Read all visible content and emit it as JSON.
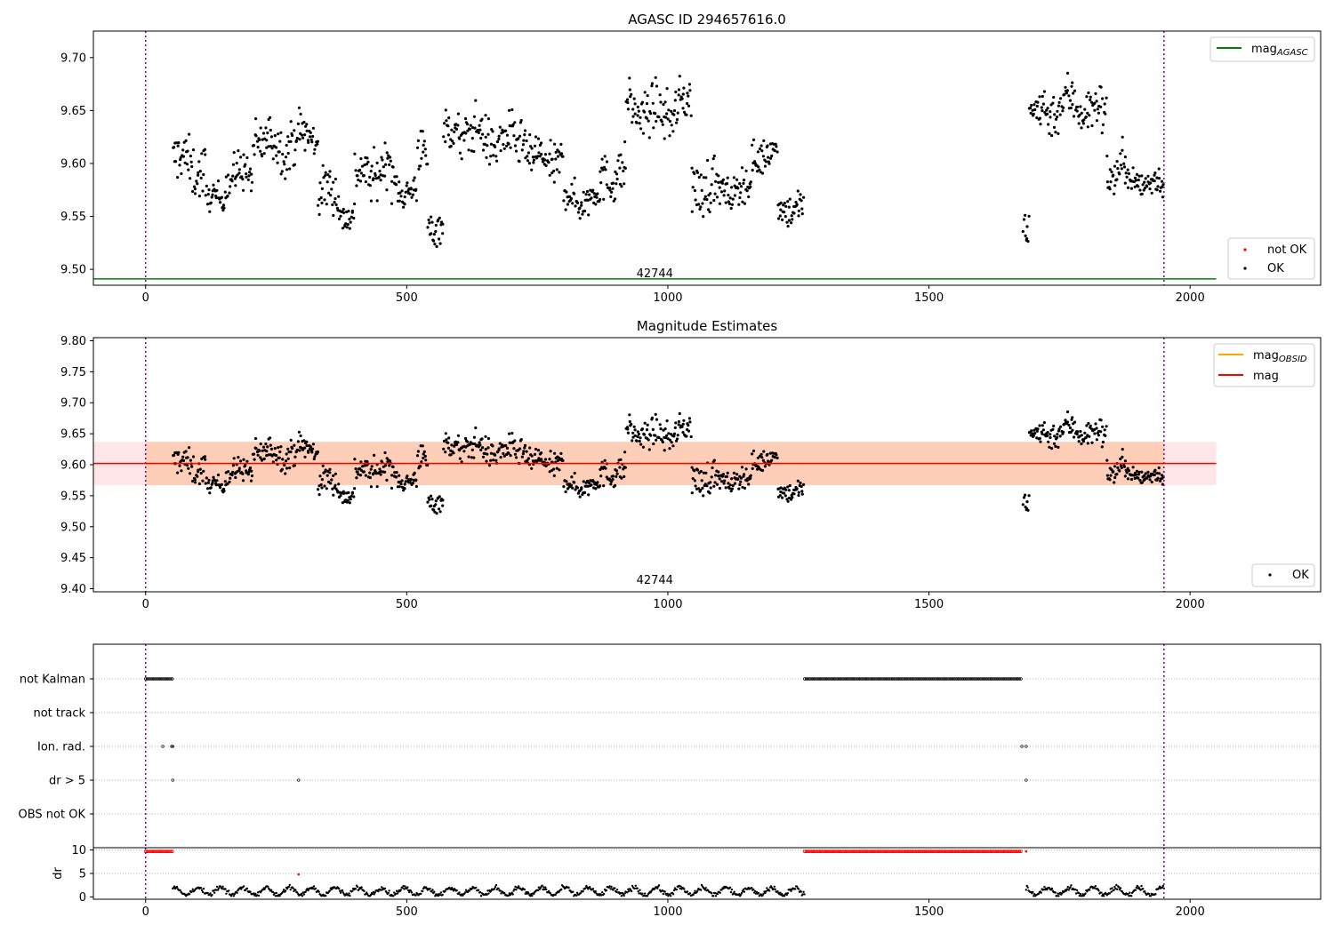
{
  "chart_data": [
    {
      "type": "scatter",
      "title": "AGASC ID 294657616.0",
      "xlim": [
        -100,
        2250
      ],
      "ylim": [
        9.485,
        9.725
      ],
      "xticks": [
        0,
        500,
        1000,
        1500,
        2000
      ],
      "yticks": [
        9.5,
        9.55,
        9.6,
        9.65,
        9.7
      ],
      "ytick_labels": [
        "9.50",
        "9.55",
        "9.60",
        "9.65",
        "9.70"
      ],
      "annotation": "42744",
      "annotation_x": 975,
      "vlines": [
        0,
        1950
      ],
      "mag_agasc": 9.491,
      "mag_line_range": [
        -100,
        2050
      ],
      "legend_lines": [
        {
          "label": "mag",
          "sub": "AGASC",
          "color": "#008000"
        }
      ],
      "legend_points": [
        {
          "label": "not OK",
          "color": "#ff0000"
        },
        {
          "label": "OK",
          "color": "#000000"
        }
      ],
      "segments": [
        {
          "x0": 52,
          "x1": 115,
          "base": 9.601,
          "amp": 0.022
        },
        {
          "x0": 115,
          "x1": 150,
          "base": 9.568,
          "amp": 0.012
        },
        {
          "x0": 150,
          "x1": 205,
          "base": 9.585,
          "amp": 0.018
        },
        {
          "x0": 205,
          "x1": 330,
          "base": 9.622,
          "amp": 0.02
        },
        {
          "x0": 330,
          "x1": 370,
          "base": 9.57,
          "amp": 0.02
        },
        {
          "x0": 370,
          "x1": 400,
          "base": 9.555,
          "amp": 0.013
        },
        {
          "x0": 400,
          "x1": 470,
          "base": 9.592,
          "amp": 0.02
        },
        {
          "x0": 470,
          "x1": 520,
          "base": 9.575,
          "amp": 0.015
        },
        {
          "x0": 520,
          "x1": 540,
          "base": 9.61,
          "amp": 0.02
        },
        {
          "x0": 540,
          "x1": 570,
          "base": 9.545,
          "amp": 0.015
        },
        {
          "x0": 570,
          "x1": 610,
          "base": 9.625,
          "amp": 0.02
        },
        {
          "x0": 610,
          "x1": 730,
          "base": 9.625,
          "amp": 0.02
        },
        {
          "x0": 730,
          "x1": 800,
          "base": 9.6,
          "amp": 0.018
        },
        {
          "x0": 800,
          "x1": 870,
          "base": 9.57,
          "amp": 0.015
        },
        {
          "x0": 870,
          "x1": 920,
          "base": 9.585,
          "amp": 0.02
        },
        {
          "x0": 920,
          "x1": 1045,
          "base": 9.652,
          "amp": 0.02
        },
        {
          "x0": 1045,
          "x1": 1090,
          "base": 9.575,
          "amp": 0.025
        },
        {
          "x0": 1090,
          "x1": 1160,
          "base": 9.578,
          "amp": 0.015
        },
        {
          "x0": 1160,
          "x1": 1210,
          "base": 9.605,
          "amp": 0.015
        },
        {
          "x0": 1210,
          "x1": 1260,
          "base": 9.56,
          "amp": 0.015
        },
        {
          "x0": 1680,
          "x1": 1692,
          "base": 9.545,
          "amp": 0.02
        },
        {
          "x0": 1692,
          "x1": 1840,
          "base": 9.652,
          "amp": 0.02
        },
        {
          "x0": 1840,
          "x1": 1880,
          "base": 9.598,
          "amp": 0.02
        },
        {
          "x0": 1880,
          "x1": 1950,
          "base": 9.58,
          "amp": 0.013
        }
      ]
    },
    {
      "type": "scatter",
      "title": "Magnitude Estimates",
      "xlim": [
        -100,
        2250
      ],
      "ylim": [
        9.395,
        9.805
      ],
      "xticks": [
        0,
        500,
        1000,
        1500,
        2000
      ],
      "yticks": [
        9.4,
        9.45,
        9.5,
        9.55,
        9.6,
        9.65,
        9.7,
        9.75,
        9.8
      ],
      "ytick_labels": [
        "9.40",
        "9.45",
        "9.50",
        "9.55",
        "9.60",
        "9.65",
        "9.70",
        "9.75",
        "9.80"
      ],
      "annotation": "42744",
      "annotation_x": 975,
      "vlines": [
        0,
        1950
      ],
      "mag": 9.602,
      "mag_band": [
        9.567,
        9.637
      ],
      "mag_obsid": 9.602,
      "obsid_range": [
        0,
        1950
      ],
      "mag_line_range": [
        -100,
        2050
      ],
      "legend_lines": [
        {
          "label": "mag",
          "sub": "OBSID",
          "color": "#ffa500"
        },
        {
          "label": "mag",
          "sub": "",
          "color": "#ff0000"
        }
      ],
      "legend_points": [
        {
          "label": "OK",
          "color": "#000000"
        }
      ]
    },
    {
      "type": "scatter",
      "title": "",
      "xlim": [
        -100,
        2250
      ],
      "categories": [
        "not Kalman",
        "not track",
        "Ion. rad.",
        "dr > 5",
        "OBS not OK"
      ],
      "vlines": [
        0,
        1950
      ],
      "flag_runs": [
        {
          "row": 0,
          "x0": 0,
          "x1": 52,
          "step": 3
        },
        {
          "row": 0,
          "x0": 1262,
          "x1": 1678,
          "step": 3
        }
      ],
      "flag_points": [
        {
          "row": 2,
          "x": 33
        },
        {
          "row": 2,
          "x": 50
        },
        {
          "row": 2,
          "x": 52
        },
        {
          "row": 2,
          "x": 1678
        },
        {
          "row": 2,
          "x": 1686
        },
        {
          "row": 3,
          "x": 52
        },
        {
          "row": 3,
          "x": 293
        },
        {
          "row": 3,
          "x": 1686
        }
      ]
    },
    {
      "type": "scatter",
      "title": "",
      "ylabel": "dr",
      "xlim": [
        -100,
        2250
      ],
      "ylim": [
        -0.5,
        10.5
      ],
      "xticks": [
        0,
        500,
        1000,
        1500,
        2000
      ],
      "yticks": [
        0,
        5,
        10
      ],
      "vlines": [
        0,
        1950
      ],
      "clipped_runs": [
        {
          "x0": 0,
          "x1": 52,
          "y": 9.7
        },
        {
          "x0": 1262,
          "x1": 1678,
          "y": 9.7
        }
      ],
      "extra_red": [
        {
          "x": 293,
          "y": 4.8
        },
        {
          "x": 1686,
          "y": 9.7
        }
      ],
      "ranges": [
        [
          52,
          1262
        ],
        [
          1686,
          1950
        ]
      ]
    }
  ]
}
